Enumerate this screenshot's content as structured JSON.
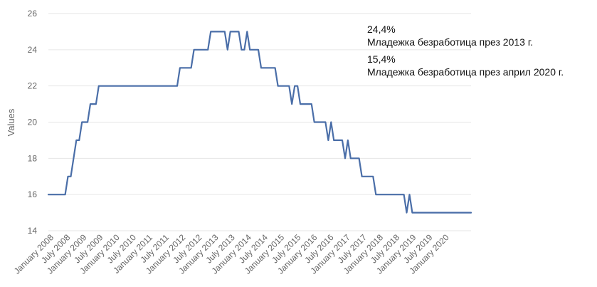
{
  "chart_data": {
    "type": "line",
    "ylabel": "Values",
    "ylim": [
      14,
      26
    ],
    "yticks": [
      14,
      16,
      18,
      20,
      22,
      24,
      26
    ],
    "grid": "horizontal",
    "line_color": "#4a6ea8",
    "x_tick_labels": [
      "January 2008",
      "July 2008",
      "January 2009",
      "July 2009",
      "January 2010",
      "July 2010",
      "January 2011",
      "July 2011",
      "January 2012",
      "July 2012",
      "January 2013",
      "July 2013",
      "January 2014",
      "July 2014",
      "January 2015",
      "July 2015",
      "January 2016",
      "July 2016",
      "January 2017",
      "July 2017",
      "January 2018",
      "July 2018",
      "January 2019",
      "July 2019",
      "January 2020"
    ],
    "x_range": [
      "2008-01",
      "2020-08"
    ],
    "series": [
      {
        "points": [
          [
            "2008-01",
            16
          ],
          [
            "2008-07",
            16
          ],
          [
            "2008-08",
            17
          ],
          [
            "2008-09",
            17
          ],
          [
            "2008-10",
            18
          ],
          [
            "2008-11",
            19
          ],
          [
            "2008-12",
            19
          ],
          [
            "2009-01",
            20
          ],
          [
            "2009-03",
            20
          ],
          [
            "2009-04",
            21
          ],
          [
            "2009-06",
            21
          ],
          [
            "2009-07",
            22
          ],
          [
            "2011-11",
            22
          ],
          [
            "2011-12",
            23
          ],
          [
            "2012-04",
            23
          ],
          [
            "2012-05",
            24
          ],
          [
            "2012-10",
            24
          ],
          [
            "2012-11",
            25
          ],
          [
            "2013-04",
            25
          ],
          [
            "2013-05",
            24
          ],
          [
            "2013-06",
            25
          ],
          [
            "2013-09",
            25
          ],
          [
            "2013-10",
            24
          ],
          [
            "2013-11",
            24
          ],
          [
            "2013-12",
            25
          ],
          [
            "2014-01",
            24
          ],
          [
            "2014-04",
            24
          ],
          [
            "2014-05",
            23
          ],
          [
            "2014-10",
            23
          ],
          [
            "2014-11",
            22
          ],
          [
            "2015-03",
            22
          ],
          [
            "2015-04",
            21
          ],
          [
            "2015-05",
            22
          ],
          [
            "2015-06",
            22
          ],
          [
            "2015-07",
            21
          ],
          [
            "2015-11",
            21
          ],
          [
            "2015-12",
            20
          ],
          [
            "2016-04",
            20
          ],
          [
            "2016-05",
            19
          ],
          [
            "2016-06",
            20
          ],
          [
            "2016-07",
            19
          ],
          [
            "2016-10",
            19
          ],
          [
            "2016-11",
            18
          ],
          [
            "2016-12",
            19
          ],
          [
            "2017-01",
            18
          ],
          [
            "2017-04",
            18
          ],
          [
            "2017-05",
            17
          ],
          [
            "2017-09",
            17
          ],
          [
            "2017-10",
            16
          ],
          [
            "2018-08",
            16
          ],
          [
            "2018-09",
            15
          ],
          [
            "2018-10",
            16
          ],
          [
            "2018-11",
            15
          ],
          [
            "2020-08",
            15
          ]
        ]
      }
    ],
    "annotations": [
      {
        "value": "24,4%",
        "text": "Младежка безработица през 2013 г."
      },
      {
        "value": "15,4%",
        "text": "Младежка безработица през април 2020 г."
      }
    ]
  }
}
